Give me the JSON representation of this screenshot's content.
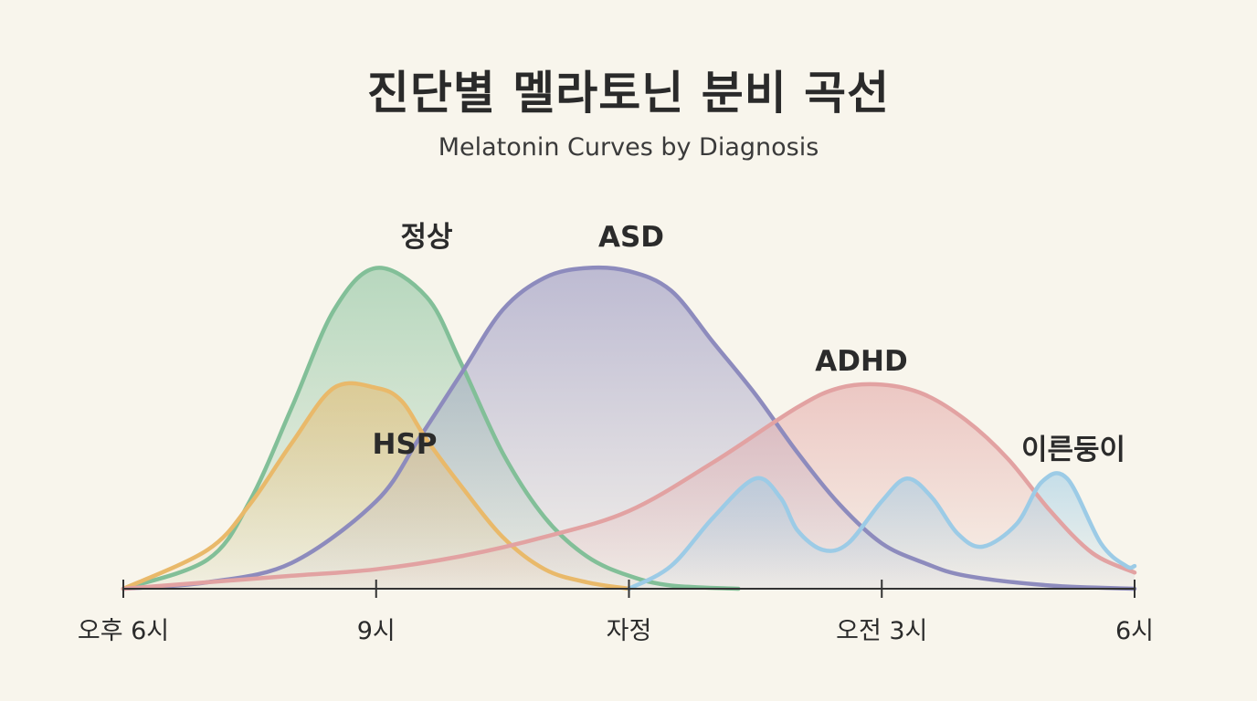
{
  "title": "진단별 멜라토닌 분비 곡선",
  "subtitle": "Melatonin Curves by Diagnosis",
  "chart_data": {
    "type": "area",
    "title": "진단별 멜라토닌 분비 곡선",
    "subtitle": "Melatonin Curves by Diagnosis",
    "xlabel": "",
    "ylabel": "",
    "x_ticks": [
      {
        "hour": 18,
        "label": "오후 6시"
      },
      {
        "hour": 21,
        "label": "9시"
      },
      {
        "hour": 24,
        "label": "자정"
      },
      {
        "hour": 27,
        "label": "오전 3시"
      },
      {
        "hour": 30,
        "label": "6시"
      }
    ],
    "xlim": [
      18,
      30
    ],
    "ylim": [
      0,
      1
    ],
    "grid": false,
    "legend": "labels placed directly above each curve",
    "series": [
      {
        "name": "정상",
        "color": "#82bf98",
        "x": [
          18,
          19,
          19.5,
          20,
          20.5,
          21,
          21.6,
          22,
          22.5,
          23,
          23.5,
          24,
          24.5,
          25.3
        ],
        "y": [
          0.0,
          0.09,
          0.27,
          0.56,
          0.86,
          0.99,
          0.9,
          0.7,
          0.42,
          0.22,
          0.1,
          0.04,
          0.01,
          0.0
        ]
      },
      {
        "name": "HSP",
        "color": "#e9b96a",
        "x": [
          18,
          19,
          19.5,
          20,
          20.5,
          21,
          21.3,
          21.6,
          22,
          22.5,
          23,
          23.5,
          24
        ],
        "y": [
          0.0,
          0.12,
          0.26,
          0.45,
          0.62,
          0.62,
          0.58,
          0.46,
          0.32,
          0.16,
          0.06,
          0.02,
          0.0
        ]
      },
      {
        "name": "ASD",
        "color": "#8d8bbd",
        "x": [
          18,
          19,
          20,
          21,
          21.5,
          22,
          22.5,
          23,
          23.5,
          24,
          24.5,
          25,
          25.5,
          26,
          26.5,
          27,
          27.5,
          28,
          29,
          30
        ],
        "y": [
          0.0,
          0.02,
          0.08,
          0.27,
          0.46,
          0.66,
          0.86,
          0.96,
          0.99,
          0.98,
          0.92,
          0.76,
          0.6,
          0.42,
          0.26,
          0.14,
          0.08,
          0.04,
          0.01,
          0.0
        ]
      },
      {
        "name": "ADHD",
        "color": "#e2a2a2",
        "x": [
          18,
          19,
          20,
          21,
          22,
          23,
          24,
          25,
          26,
          26.5,
          27,
          27.5,
          28,
          28.5,
          29,
          29.5,
          30
        ],
        "y": [
          0.0,
          0.02,
          0.04,
          0.06,
          0.1,
          0.16,
          0.24,
          0.39,
          0.56,
          0.62,
          0.63,
          0.6,
          0.52,
          0.4,
          0.24,
          0.11,
          0.05
        ]
      },
      {
        "name": "이른둥이",
        "color": "#9ccbe6",
        "x": [
          24,
          24.5,
          25,
          25.5,
          25.8,
          26,
          26.3,
          26.6,
          27,
          27.3,
          27.6,
          27.9,
          28.2,
          28.6,
          28.9,
          29.2,
          29.6,
          29.9,
          30
        ],
        "y": [
          0.0,
          0.07,
          0.22,
          0.34,
          0.28,
          0.18,
          0.12,
          0.14,
          0.27,
          0.34,
          0.28,
          0.17,
          0.13,
          0.2,
          0.33,
          0.34,
          0.14,
          0.07,
          0.07
        ]
      }
    ]
  }
}
